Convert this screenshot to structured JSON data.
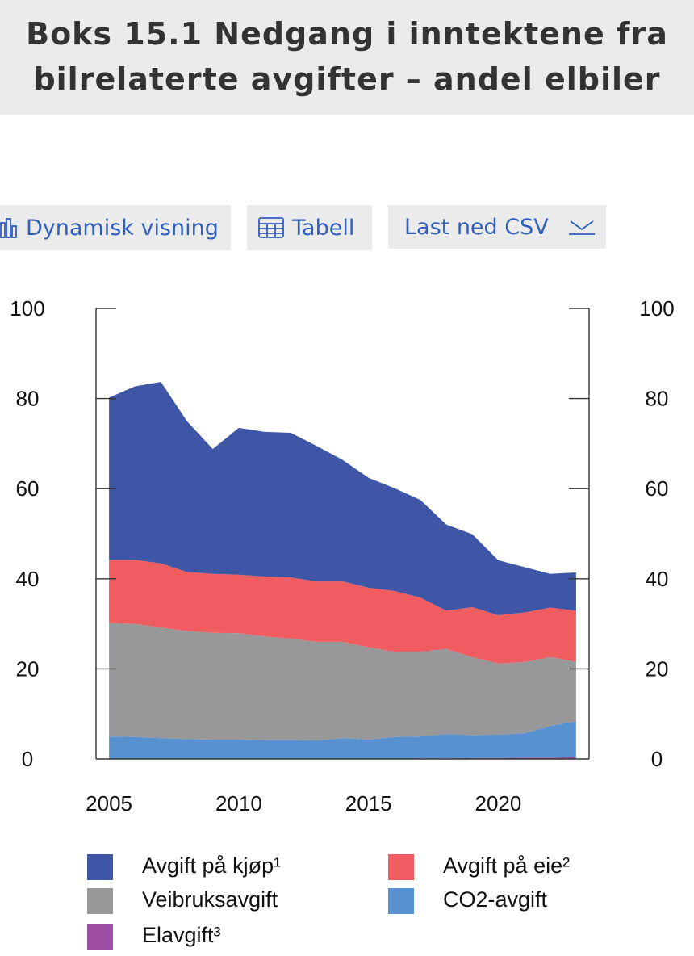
{
  "header": {
    "title": "Boks 15.1 Nedgang i inntektene fra bilrelaterte avgifter – andel elbiler"
  },
  "toolbar": {
    "dynamic_label": "Dynamisk visning",
    "table_label": "Tabell",
    "csv_label": "Last ned CSV"
  },
  "colors": {
    "kjop": "#3f56a6",
    "eie": "#f05d61",
    "veibruk": "#98979a",
    "co2": "#5891cf",
    "el": "#9b4ea3",
    "accent": "#2f5fbf"
  },
  "chart_data": {
    "type": "area",
    "stacked": true,
    "x": [
      2005,
      2006,
      2007,
      2008,
      2009,
      2010,
      2011,
      2012,
      2013,
      2014,
      2015,
      2016,
      2017,
      2018,
      2019,
      2020,
      2021,
      2022,
      2023
    ],
    "xticks": [
      2005,
      2010,
      2015,
      2020
    ],
    "yticks": [
      0,
      20,
      40,
      60,
      80,
      100
    ],
    "ylim": [
      0,
      100
    ],
    "xlim": [
      2004.5,
      2023.5
    ],
    "grid": false,
    "right_axis": true,
    "legend_position": "bottom",
    "series": [
      {
        "name": "Elavgift³",
        "color": "#9b4ea3",
        "values": [
          0,
          0,
          0,
          0,
          0,
          0,
          0,
          0,
          0,
          0,
          0,
          0,
          0.1,
          0.1,
          0.2,
          0.2,
          0.3,
          0.3,
          0.4
        ]
      },
      {
        "name": "CO2-avgift",
        "color": "#5891cf",
        "values": [
          5,
          4.9,
          4.6,
          4.4,
          4.3,
          4.3,
          4.2,
          4.2,
          4.1,
          4.6,
          4.3,
          4.9,
          4.9,
          5.4,
          5.1,
          5.2,
          5.4,
          7.0,
          8.0
        ]
      },
      {
        "name": "Veibruksavgift",
        "color": "#98979a",
        "values": [
          25.2,
          25.1,
          24.6,
          24.0,
          23.7,
          23.6,
          23.0,
          22.5,
          21.9,
          21.4,
          20.5,
          18.9,
          18.8,
          18.9,
          17.3,
          15.8,
          15.8,
          15.3,
          13.2
        ]
      },
      {
        "name": "Avgift på eie²",
        "color": "#f05d61",
        "values": [
          14.0,
          14.2,
          14.2,
          13.1,
          13.1,
          13.0,
          13.3,
          13.6,
          13.4,
          13.4,
          13.2,
          13.5,
          12.0,
          8.5,
          11.1,
          10.7,
          11.0,
          11.0,
          11.3
        ]
      },
      {
        "name": "Avgift på kjøp¹",
        "color": "#3f56a6",
        "values": [
          36.0,
          38.5,
          40.3,
          33.5,
          27.7,
          32.6,
          32.1,
          32.1,
          30.1,
          27.0,
          24.4,
          22.8,
          21.7,
          19.1,
          16.2,
          12.2,
          10.1,
          7.5,
          8.5
        ]
      }
    ]
  },
  "legend": [
    {
      "label": "Avgift på kjøp¹",
      "color": "#3f56a6"
    },
    {
      "label": "Avgift på eie²",
      "color": "#f05d61"
    },
    {
      "label": "Veibruksavgift",
      "color": "#98979a"
    },
    {
      "label": "CO2-avgift",
      "color": "#5891cf"
    },
    {
      "label": "Elavgift³",
      "color": "#9b4ea3"
    }
  ]
}
